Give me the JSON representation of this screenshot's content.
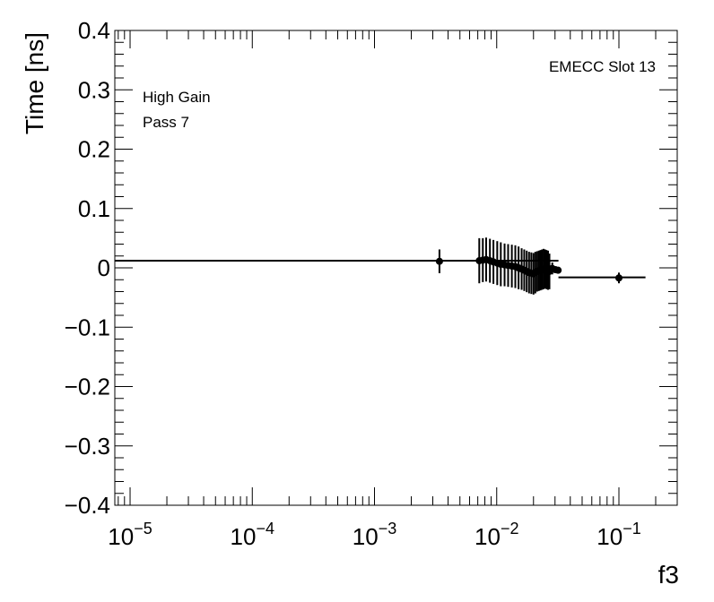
{
  "chart_data": {
    "type": "scatter",
    "x_scale": "log",
    "xlabel": "f3",
    "ylabel": "Time [ns]",
    "xlim": [
      7.5e-06,
      0.3
    ],
    "ylim": [
      -0.4,
      0.4
    ],
    "y_ticks": [
      -0.4,
      -0.3,
      -0.2,
      -0.1,
      0,
      0.1,
      0.2,
      0.3,
      0.4
    ],
    "y_tick_labels": [
      "−0.4",
      "−0.3",
      "−0.2",
      "−0.1",
      "0",
      "0.1",
      "0.2",
      "0.3",
      "0.4"
    ],
    "x_ticks": [
      1e-05,
      0.0001,
      0.001,
      0.01,
      0.1
    ],
    "x_tick_labels": [
      {
        "base": "10",
        "exp": "−5"
      },
      {
        "base": "10",
        "exp": "−4"
      },
      {
        "base": "10",
        "exp": "−3"
      },
      {
        "base": "10",
        "exp": "−2"
      },
      {
        "base": "10",
        "exp": "−1"
      }
    ],
    "annotations": {
      "slot": "EMECC Slot 13",
      "gain": "High Gain",
      "pass": "Pass 7"
    },
    "fit_lines": [
      {
        "x": [
          7.5e-06,
          0.032
        ],
        "y": [
          0.012,
          0.012
        ]
      },
      {
        "x": [
          0.032,
          0.165
        ],
        "y": [
          -0.016,
          -0.016
        ]
      }
    ],
    "points": [
      {
        "x": 0.0034,
        "y": 0.011,
        "err": 0.02
      },
      {
        "x": 0.0072,
        "y": 0.012,
        "err": 0.038
      },
      {
        "x": 0.0077,
        "y": 0.013,
        "err": 0.037
      },
      {
        "x": 0.0082,
        "y": 0.014,
        "err": 0.037
      },
      {
        "x": 0.0088,
        "y": 0.012,
        "err": 0.037
      },
      {
        "x": 0.0094,
        "y": 0.01,
        "err": 0.037
      },
      {
        "x": 0.0101,
        "y": 0.008,
        "err": 0.037
      },
      {
        "x": 0.0108,
        "y": 0.006,
        "err": 0.037
      },
      {
        "x": 0.0116,
        "y": 0.005,
        "err": 0.036
      },
      {
        "x": 0.0124,
        "y": 0.004,
        "err": 0.036
      },
      {
        "x": 0.0133,
        "y": 0.003,
        "err": 0.036
      },
      {
        "x": 0.0142,
        "y": 0.002,
        "err": 0.036
      },
      {
        "x": 0.0151,
        "y": 0.0,
        "err": 0.036
      },
      {
        "x": 0.016,
        "y": -0.002,
        "err": 0.035
      },
      {
        "x": 0.0168,
        "y": -0.004,
        "err": 0.035
      },
      {
        "x": 0.0176,
        "y": -0.006,
        "err": 0.035
      },
      {
        "x": 0.0184,
        "y": -0.008,
        "err": 0.035
      },
      {
        "x": 0.0192,
        "y": -0.009,
        "err": 0.035
      },
      {
        "x": 0.02,
        "y": -0.01,
        "err": 0.035
      },
      {
        "x": 0.0207,
        "y": -0.008,
        "err": 0.035
      },
      {
        "x": 0.0214,
        "y": -0.006,
        "err": 0.034
      },
      {
        "x": 0.0221,
        "y": -0.005,
        "err": 0.034
      },
      {
        "x": 0.0228,
        "y": -0.004,
        "err": 0.034
      },
      {
        "x": 0.0235,
        "y": -0.003,
        "err": 0.034
      },
      {
        "x": 0.0242,
        "y": -0.002,
        "err": 0.034
      },
      {
        "x": 0.0249,
        "y": -0.002,
        "err": 0.033
      },
      {
        "x": 0.0256,
        "y": -0.003,
        "err": 0.033
      },
      {
        "x": 0.0263,
        "y": -0.004,
        "err": 0.033
      },
      {
        "x": 0.027,
        "y": -0.006,
        "err": 0.03
      },
      {
        "x": 0.0285,
        "y": -0.001,
        "err": 0.01
      },
      {
        "x": 0.0302,
        "y": -0.003,
        "err": 0.005
      },
      {
        "x": 0.0318,
        "y": -0.004,
        "err": 0.003
      },
      {
        "x": 0.1,
        "y": -0.017,
        "err": 0.009
      }
    ]
  }
}
